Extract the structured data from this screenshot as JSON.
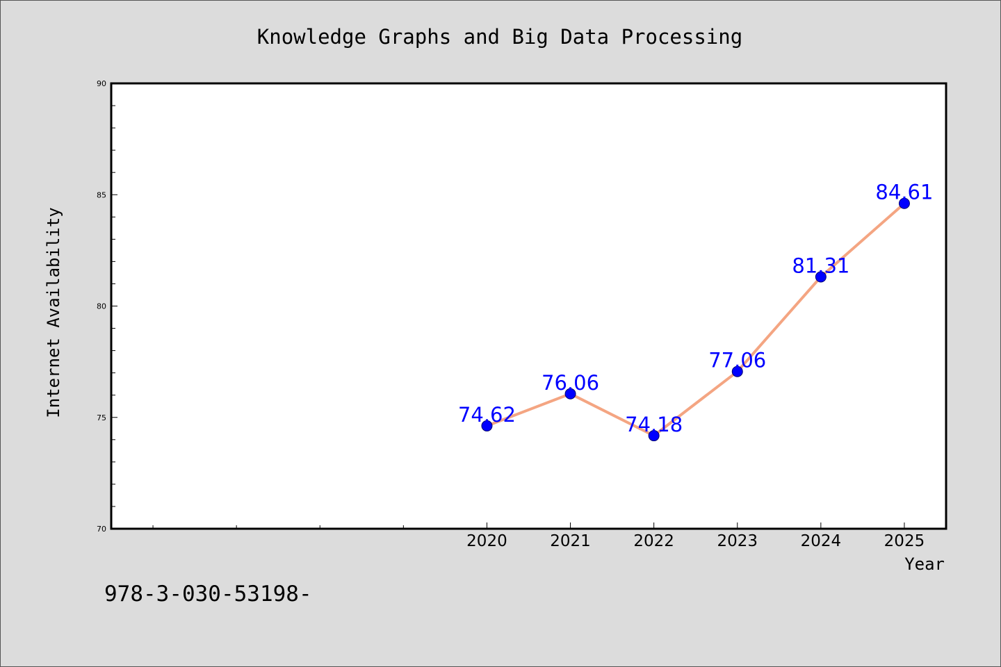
{
  "chart_data": {
    "type": "line",
    "title": "Knowledge Graphs and Big Data Processing",
    "xlabel": "Year",
    "ylabel": "Internet Availability",
    "x": [
      2020,
      2021,
      2022,
      2023,
      2024,
      2025
    ],
    "series": [
      {
        "values": [
          74.62,
          76.06,
          74.18,
          77.06,
          81.31,
          84.61
        ],
        "data_labels": [
          "74.62",
          "76.06",
          "74.18",
          "77.06",
          "81.31",
          "84.61"
        ]
      }
    ],
    "ylim": [
      70,
      90
    ],
    "xlim": [
      2015.5,
      2025.5
    ],
    "y_ticks": [
      "70",
      "75",
      "80",
      "85",
      "90"
    ],
    "x_ticks": [
      "2020",
      "2021",
      "2022",
      "2023",
      "2024",
      "2025"
    ],
    "grid": false,
    "legend": "none",
    "footnote": "978-3-030-53198-",
    "colors": {
      "line": "#f4a582",
      "marker": "#0000ff",
      "data_label": "#0000ff",
      "background": "#dcdcdc",
      "plot_background": "#ffffff",
      "text": "#000000"
    }
  }
}
